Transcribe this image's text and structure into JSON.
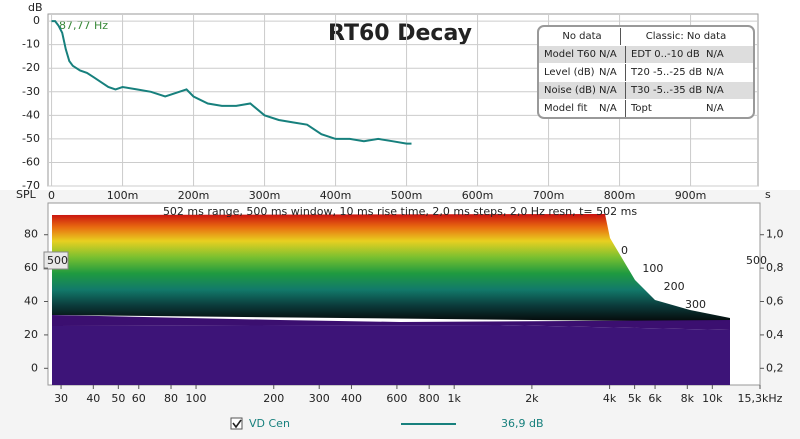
{
  "chart_data": [
    {
      "type": "line",
      "title": "RT60 Decay",
      "y_label": "dB",
      "x_unit": "s",
      "cursor_label": "87,77 Hz",
      "x": [
        0,
        5,
        10,
        15,
        20,
        25,
        30,
        40,
        50,
        60,
        70,
        80,
        90,
        100,
        120,
        140,
        160,
        180,
        190,
        200,
        220,
        240,
        260,
        280,
        300,
        320,
        340,
        360,
        380,
        400,
        420,
        440,
        460,
        480,
        500,
        507
      ],
      "series": [
        {
          "name": "VD Cen",
          "color": "#17807d",
          "values": [
            0,
            0,
            -2,
            -5,
            -12,
            -17,
            -19,
            -21,
            -22,
            -24,
            -26,
            -28,
            -29,
            -28,
            -29,
            -30,
            -32,
            -30,
            -29,
            -32,
            -35,
            -36,
            -36,
            -35,
            -40,
            -42,
            -43,
            -44,
            -48,
            -50,
            -50,
            -51,
            -50,
            -51,
            -52,
            -52
          ]
        }
      ],
      "xlim": [
        -5,
        995
      ],
      "ylim": [
        -70,
        3
      ],
      "xticks": [
        0,
        {
          "value": 100,
          "label": "100m"
        },
        {
          "value": 200,
          "label": "200m"
        },
        {
          "value": 300,
          "label": "300m"
        },
        {
          "value": 400,
          "label": "400m"
        },
        {
          "value": 500,
          "label": "500m"
        },
        {
          "value": 600,
          "label": "600m"
        },
        {
          "value": 700,
          "label": "700m"
        },
        {
          "value": 800,
          "label": "800m"
        },
        {
          "value": 900,
          "label": "900m"
        }
      ],
      "yticks": [
        0,
        -10,
        -20,
        -30,
        -40,
        -50,
        -60,
        -70
      ],
      "grid": true
    },
    {
      "type": "waterfall",
      "subtitle": "502 ms range, 500 ms window, 10 ms rise time, 2,0 ms steps,  2,0 Hz resn, t= 502 ms",
      "y_label": "SPL",
      "log_x": true,
      "xlim": [
        26.7,
        15300
      ],
      "ylim": [
        -10,
        99
      ],
      "y2lim": [
        0.1,
        1.19
      ],
      "xticks": [
        30,
        40,
        50,
        60,
        80,
        100,
        200,
        300,
        400,
        600,
        800,
        {
          "value": 1000,
          "label": "1k"
        },
        {
          "value": 2000,
          "label": "2k"
        },
        {
          "value": 4000,
          "label": "4k"
        },
        {
          "value": 5000,
          "label": "5k"
        },
        {
          "value": 6000,
          "label": "6k"
        },
        {
          "value": 8000,
          "label": "8k"
        },
        {
          "value": 10000,
          "label": "10k"
        },
        {
          "value": 15300,
          "label": "15,3kHz"
        }
      ],
      "yticks": [
        0,
        20,
        40,
        60,
        80
      ],
      "y2ticks": [
        {
          "value": 0.2,
          "label": "0,2"
        },
        {
          "value": 0.4,
          "label": "0,4"
        },
        {
          "value": 0.6,
          "label": "0,6"
        },
        {
          "value": 0.8,
          "label": "0,8"
        },
        {
          "value": 1.0,
          "label": "1,0"
        }
      ],
      "time_ticks": [
        0,
        100,
        200,
        300
      ],
      "time_end_label": "500",
      "time_marker_label": "500"
    }
  ],
  "info_panel": {
    "header": [
      "No data",
      "Classic: No data"
    ],
    "rows": [
      [
        "Model T60",
        "N/A",
        "EDT  0..-10 dB",
        "N/A"
      ],
      [
        "Level (dB)",
        "N/A",
        "T20 -5..-25 dB",
        "N/A"
      ],
      [
        "Noise (dB)",
        "N/A",
        "T30 -5..-35 dB",
        "N/A"
      ],
      [
        "Model fit",
        "N/A",
        "Topt",
        "N/A"
      ]
    ]
  },
  "legend": {
    "name": "VD Cen",
    "value": "36,9 dB"
  }
}
